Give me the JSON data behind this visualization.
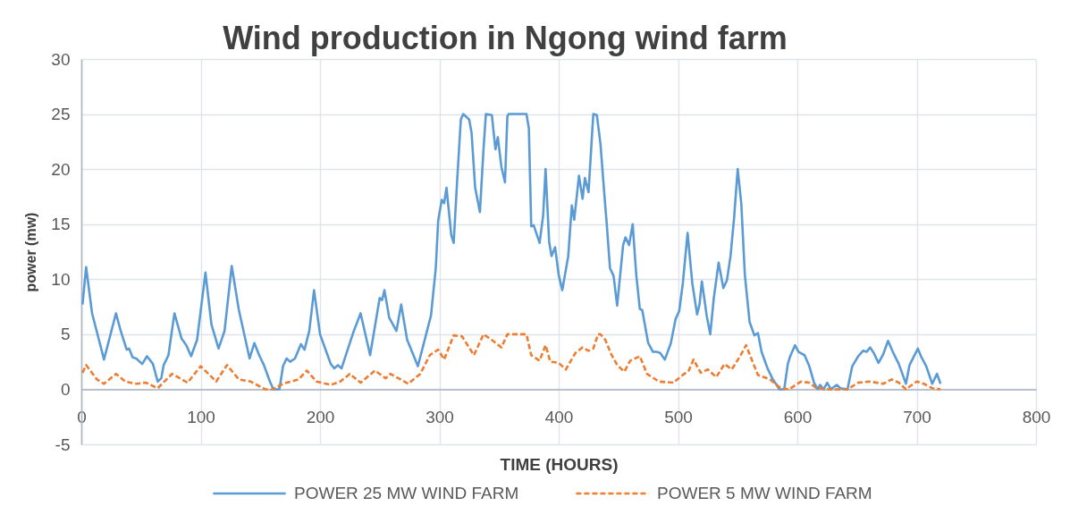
{
  "chart_data": {
    "type": "line",
    "title": "Wind production in Ngong wind farm",
    "xlabel": "TIME (HOURS)",
    "ylabel": "power (mw)",
    "xlim": [
      0,
      800
    ],
    "xticks": [
      0,
      100,
      200,
      300,
      400,
      500,
      600,
      700,
      800
    ],
    "ylim": [
      -5,
      30
    ],
    "yticks": [
      -5,
      0,
      5,
      10,
      15,
      20,
      25,
      30
    ],
    "grid": true,
    "legend": "bottom",
    "marker": "none",
    "series": [
      {
        "name": "POWER 25 MW WIND FARM",
        "color": "#5b9bd5",
        "line_style": "solid",
        "x": [
          1,
          4,
          9,
          19,
          29,
          33,
          38,
          40,
          43,
          46,
          51,
          55,
          60,
          64,
          67,
          69,
          73,
          78,
          84,
          88,
          92,
          97,
          104,
          109,
          115,
          120,
          126,
          132,
          141,
          145,
          149,
          153,
          158,
          161,
          166,
          169,
          172,
          175,
          179,
          184,
          187,
          191,
          195,
          200,
          207,
          209,
          212,
          215,
          218,
          228,
          234,
          242,
          250,
          252,
          254,
          258,
          264,
          268,
          273,
          282,
          293,
          297,
          299,
          302,
          304,
          306,
          310,
          312,
          315,
          318,
          320,
          325,
          327,
          330,
          334,
          337,
          339,
          344,
          347,
          349,
          352,
          355,
          357,
          358,
          373,
          375,
          377,
          379,
          384,
          387,
          389,
          392,
          394,
          397,
          400,
          403,
          408,
          411,
          413,
          417,
          420,
          422,
          425,
          429,
          432,
          435,
          439,
          440,
          443,
          446,
          449,
          454,
          456,
          459,
          462,
          465,
          468,
          470,
          475,
          479,
          482,
          485,
          489,
          494,
          498,
          501,
          504,
          508,
          512,
          516,
          518,
          520,
          524,
          527,
          530,
          534,
          538,
          541,
          544,
          547,
          550,
          553,
          556,
          560,
          564,
          567,
          570,
          575,
          579,
          585,
          589,
          592,
          594,
          598,
          601,
          606,
          610,
          614,
          617,
          619,
          622,
          625,
          628,
          633,
          636,
          642,
          646,
          651,
          655,
          658,
          661,
          664,
          668,
          672,
          676,
          680,
          685,
          691,
          694,
          701,
          704,
          708,
          713,
          717,
          720
        ],
        "values": [
          7.7,
          11.1,
          6.9,
          2.7,
          6.9,
          5.3,
          3.6,
          3.7,
          2.9,
          2.8,
          2.3,
          3.0,
          2.3,
          0.7,
          1.0,
          2.2,
          3.1,
          6.9,
          4.6,
          4.0,
          3.0,
          4.5,
          10.6,
          5.9,
          3.7,
          5.3,
          11.2,
          7.2,
          2.8,
          4.2,
          3.1,
          2.2,
          0.7,
          0,
          0,
          2.1,
          2.8,
          2.5,
          2.8,
          4.1,
          3.6,
          5.3,
          9.0,
          5.0,
          2.9,
          2.3,
          1.9,
          2.2,
          1.9,
          5.2,
          6.9,
          3.1,
          8.3,
          8.1,
          9.0,
          6.5,
          5.3,
          7.7,
          4.5,
          2.1,
          6.7,
          11.0,
          15.3,
          17.2,
          16.9,
          18.3,
          14.0,
          13.3,
          19.1,
          24.5,
          25,
          24.5,
          23.3,
          18.3,
          16.1,
          21.8,
          25,
          24.9,
          21.8,
          22.9,
          20.2,
          18.8,
          24.8,
          25,
          25,
          23.7,
          14.8,
          14.9,
          13.3,
          15.8,
          20.0,
          13.4,
          12.1,
          12.9,
          10.4,
          9.0,
          12.1,
          16.7,
          15.4,
          19.4,
          17.3,
          19.2,
          17.9,
          25,
          24.9,
          22.3,
          16.7,
          15.4,
          11.0,
          10.3,
          7.6,
          13.1,
          13.8,
          13.1,
          15.0,
          10.4,
          7.3,
          7.2,
          4.2,
          3.4,
          3.4,
          3.3,
          2.7,
          4.2,
          6.4,
          7.1,
          9.6,
          14.2,
          9.6,
          6.8,
          7.7,
          9.8,
          6.7,
          5.0,
          8.3,
          11.5,
          9.2,
          9.9,
          12.1,
          15.6,
          20.0,
          16.9,
          10.4,
          6.1,
          4.9,
          5.1,
          3.4,
          1.9,
          1.0,
          0,
          0,
          2.3,
          3.0,
          4.0,
          3.4,
          3.1,
          2.1,
          0.6,
          0,
          0.4,
          0,
          0.6,
          0,
          0.4,
          0.1,
          0,
          2.1,
          3.0,
          3.5,
          3.4,
          3.8,
          3.3,
          2.4,
          3.2,
          4.4,
          3.4,
          2.3,
          0.5,
          2.2,
          3.7,
          2.9,
          2.1,
          0.5,
          1.4,
          0.5
        ]
      },
      {
        "name": "POWER 5 MW WIND FARM",
        "color": "#ed7d31",
        "line_style": "dashed",
        "x": [
          1,
          4,
          13,
          19,
          29,
          37,
          46,
          54,
          64,
          76,
          89,
          100,
          113,
          122,
          132,
          142,
          154,
          160,
          169,
          182,
          189,
          197,
          209,
          217,
          225,
          234,
          246,
          255,
          259,
          274,
          284,
          292,
          299,
          304,
          312,
          319,
          329,
          337,
          345,
          352,
          357,
          373,
          377,
          384,
          389,
          393,
          400,
          406,
          414,
          420,
          425,
          429,
          433,
          435,
          439,
          444,
          449,
          455,
          460,
          468,
          474,
          484,
          496,
          504,
          509,
          513,
          519,
          525,
          532,
          539,
          545,
          552,
          557,
          561,
          567,
          577,
          586,
          593,
          603,
          610,
          616,
          627,
          642,
          651,
          661,
          672,
          679,
          685,
          691,
          700,
          706,
          713,
          720
        ],
        "values": [
          1.5,
          2.2,
          0.9,
          0.5,
          1.4,
          0.7,
          0.5,
          0.6,
          0.1,
          1.4,
          0.6,
          2.1,
          0.7,
          2.2,
          0.9,
          0.7,
          0,
          0,
          0.5,
          0.9,
          1.7,
          0.7,
          0.4,
          0.7,
          1.4,
          0.6,
          1.7,
          1.0,
          1.4,
          0.5,
          1.4,
          3.1,
          3.6,
          2.7,
          4.9,
          4.8,
          3.1,
          5.0,
          4.4,
          3.8,
          5.0,
          5.0,
          3.1,
          2.6,
          4.0,
          2.5,
          2.4,
          1.8,
          3.3,
          3.8,
          3.5,
          3.7,
          5.0,
          5.0,
          4.5,
          3.2,
          2.2,
          1.6,
          2.6,
          3.0,
          1.4,
          0.7,
          0.6,
          1.3,
          1.7,
          2.7,
          1.5,
          1.8,
          1.1,
          2.3,
          1.8,
          3.0,
          4.0,
          2.9,
          1.3,
          0.9,
          0.1,
          0,
          0.7,
          0.6,
          0.1,
          0,
          0,
          0.6,
          0.7,
          0.5,
          0.9,
          0.6,
          0,
          0.7,
          0.5,
          0.1,
          0
        ]
      }
    ]
  }
}
